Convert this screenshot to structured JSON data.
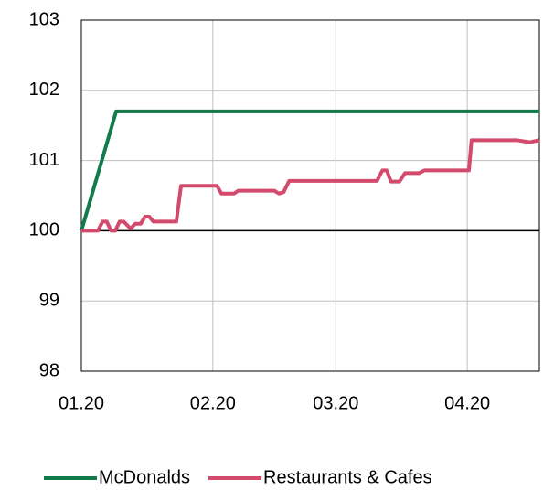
{
  "chart_data": {
    "type": "line",
    "xlim": [
      0,
      108
    ],
    "xticks": [
      {
        "value": 0,
        "label": "01.20"
      },
      {
        "value": 31,
        "label": "02.20"
      },
      {
        "value": 60,
        "label": "03.20"
      },
      {
        "value": 91,
        "label": "04.20"
      }
    ],
    "ylim": [
      98,
      103
    ],
    "yticks": [
      98,
      99,
      100,
      101,
      102,
      103
    ],
    "baseline": 100,
    "grid": true,
    "legend": "bottom",
    "series": [
      {
        "name": "McDonalds",
        "color": "#137a4b",
        "x": [
          0,
          8.2,
          108
        ],
        "values": [
          100,
          101.7,
          101.7
        ]
      },
      {
        "name": "Restaurants & Cafes",
        "color": "#d44a6c",
        "x": [
          0,
          3.9,
          5,
          6,
          7,
          8,
          9,
          10,
          11.6,
          12.7,
          14,
          15,
          16,
          17,
          22.4,
          23.5,
          32,
          33,
          36,
          37,
          45.5,
          46.6,
          47.7,
          49,
          69.7,
          71,
          72,
          73,
          75,
          76.3,
          79.6,
          80.9,
          91.4,
          92,
          102.6,
          105.8,
          108
        ],
        "values": [
          100,
          100,
          100.13,
          100.13,
          100,
          100,
          100.13,
          100.13,
          100.03,
          100.1,
          100.1,
          100.2,
          100.2,
          100.13,
          100.13,
          100.64,
          100.64,
          100.53,
          100.53,
          100.57,
          100.57,
          100.53,
          100.55,
          100.71,
          100.71,
          100.86,
          100.86,
          100.7,
          100.7,
          100.82,
          100.82,
          100.86,
          100.86,
          101.29,
          101.29,
          101.26,
          101.29
        ]
      }
    ]
  }
}
